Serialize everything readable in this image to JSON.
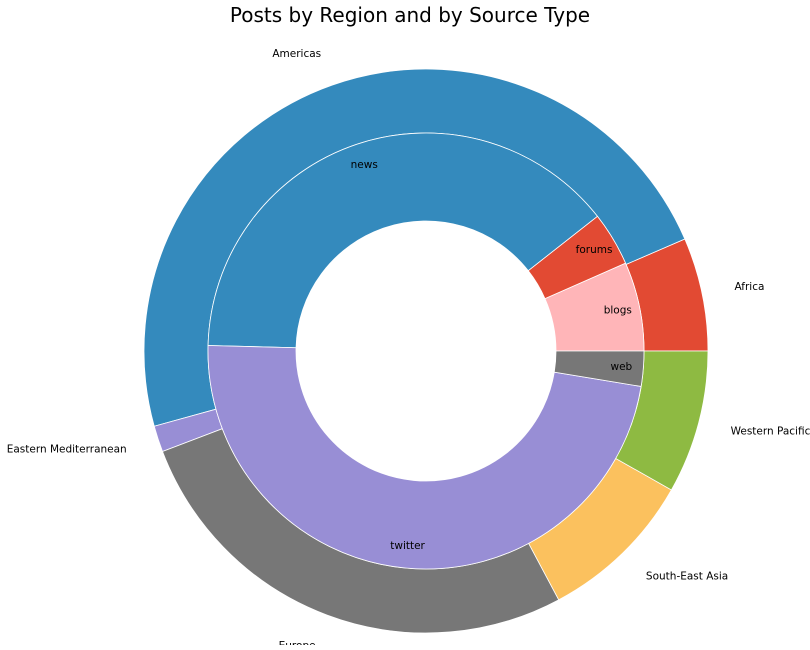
{
  "chart_data": {
    "type": "pie",
    "subtype": "nested-donut",
    "title": "Posts by Region and by Source Type",
    "outer_ring": {
      "series_name": "",
      "start_angle_deg": 0,
      "direction": "counterclockwise",
      "slices": [
        {
          "label": "Africa",
          "value": 6.5,
          "color": "#e24a33"
        },
        {
          "label": "Americas",
          "value": 47.8,
          "color": "#348abd"
        },
        {
          "label": "Eastern Mediterranean",
          "value": 1.5,
          "color": "#988ed5"
        },
        {
          "label": "Europe",
          "value": 27.0,
          "color": "#777777"
        },
        {
          "label": "South-East Asia",
          "value": 9.0,
          "color": "#fbc15e"
        },
        {
          "label": "Western Pacific",
          "value": 8.2,
          "color": "#8eba42"
        }
      ]
    },
    "inner_ring": {
      "series_name": "",
      "start_angle_deg": 0,
      "direction": "counterclockwise",
      "slices": [
        {
          "label": "blogs",
          "value": 6.6,
          "color": "#ffb5b8"
        },
        {
          "label": "forums",
          "value": 4.0,
          "color": "#e24a33"
        },
        {
          "label": "news",
          "value": 39.0,
          "color": "#348abd"
        },
        {
          "label": "twitter",
          "value": 47.8,
          "color": "#988ed5"
        },
        {
          "label": "web",
          "value": 2.6,
          "color": "#777777"
        }
      ]
    },
    "legend": "none",
    "grid": false
  }
}
